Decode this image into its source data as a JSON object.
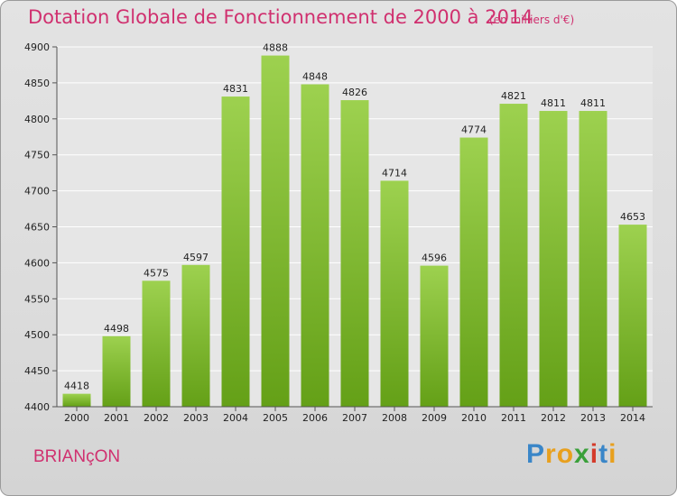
{
  "title": "Dotation Globale de Fonctionnement de 2000 à 2014",
  "subtitle": "(en milliers d'€)",
  "commune": "BRIANçON",
  "logo": {
    "text": "Proxiti",
    "letters": [
      "P",
      "r",
      "o",
      "x",
      "i",
      "t",
      "i"
    ],
    "colors": [
      "#3a86c8",
      "#e8a01e",
      "#e8a01e",
      "#3aa03a",
      "#d43a2a",
      "#3a86c8",
      "#e8a01e"
    ]
  },
  "colors": {
    "accent": "#d0306f",
    "bar_top": "#9dd14f",
    "bar_bottom": "#64a017"
  },
  "chart_data": {
    "type": "bar",
    "title": "Dotation Globale de Fonctionnement de 2000 à 2014",
    "subtitle": "(en milliers d'€)",
    "categories": [
      "2000",
      "2001",
      "2002",
      "2003",
      "2004",
      "2005",
      "2006",
      "2007",
      "2008",
      "2009",
      "2010",
      "2011",
      "2012",
      "2013",
      "2014"
    ],
    "values": [
      4418,
      4498,
      4575,
      4597,
      4831,
      4888,
      4848,
      4826,
      4714,
      4596,
      4774,
      4821,
      4811,
      4811,
      4653
    ],
    "ylim": [
      4400,
      4900
    ],
    "yticks": [
      4400,
      4450,
      4500,
      4550,
      4600,
      4650,
      4700,
      4750,
      4800,
      4850,
      4900
    ],
    "grid": true,
    "xlabel": "",
    "ylabel": ""
  }
}
